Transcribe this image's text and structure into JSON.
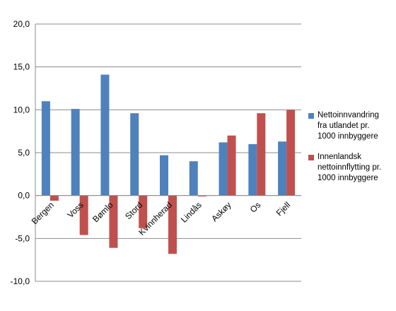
{
  "chart_data": {
    "type": "bar",
    "categories": [
      "Bergen",
      "Voss",
      "Bømlo",
      "Stord",
      "Kvinnherad",
      "Lindås",
      "Askøy",
      "Os",
      "Fjell"
    ],
    "series": [
      {
        "name": "Nettoinnvandring fra utlandet pr. 1000 innbyggere",
        "color": "#4f81bd",
        "values": [
          11.0,
          10.1,
          14.1,
          9.6,
          4.7,
          4.0,
          6.2,
          6.0,
          6.3
        ]
      },
      {
        "name": "Innenlandsk nettoinnflytting pr. 1000 innbyggere",
        "color": "#c0504d",
        "values": [
          -0.6,
          -4.6,
          -6.1,
          -3.8,
          -6.8,
          -0.1,
          7.0,
          9.6,
          10.0
        ]
      }
    ],
    "ylim": [
      -10,
      20
    ],
    "yticks": [
      "20,0",
      "15,0",
      "10,0",
      "5,0",
      "0,0",
      "-5,0",
      "-10,0"
    ],
    "grid": true,
    "legend_position": "right",
    "title": "",
    "xlabel": "",
    "ylabel": ""
  },
  "legend": {
    "items": [
      {
        "label_lines": [
          "Nettoinnvandring",
          "fra utlandet pr.",
          "1000 innbyggere"
        ]
      },
      {
        "label_lines": [
          "Innenlandsk",
          "nettoinnflytting pr.",
          "1000 innbyggere"
        ]
      }
    ]
  }
}
